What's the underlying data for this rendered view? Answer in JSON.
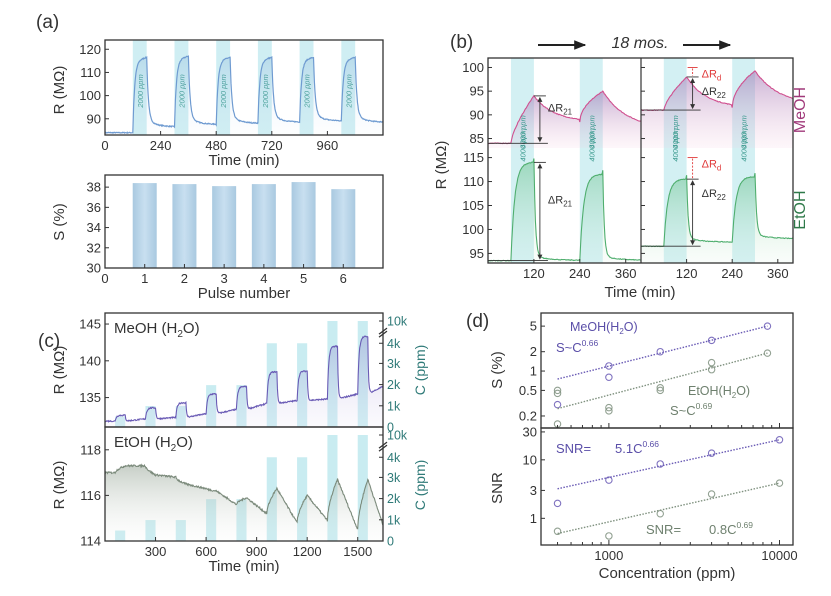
{
  "chart_data": [
    {
      "id": "a-top",
      "panel_label": "(a)",
      "type": "line",
      "xlabel": "Time (min)",
      "ylabel": "R (MΩ)",
      "xlim": [
        0,
        1200
      ],
      "ylim": [
        83,
        124
      ],
      "xticks": [
        0,
        240,
        480,
        720,
        960
      ],
      "yticks": [
        90,
        100,
        110,
        120
      ],
      "line_color": "#6f9bd1",
      "pulse_color": "#cfeef3",
      "pulse_label": "2000 ppm",
      "baseline_start": 84,
      "pulses": [
        {
          "start": 120,
          "end": 180,
          "peak": 116.5,
          "recover": 86.5
        },
        {
          "start": 300,
          "end": 360,
          "peak": 117.0,
          "recover": 87.5
        },
        {
          "start": 480,
          "end": 540,
          "peak": 116.5,
          "recover": 88.0
        },
        {
          "start": 660,
          "end": 720,
          "peak": 116.5,
          "recover": 88.5
        },
        {
          "start": 840,
          "end": 900,
          "peak": 116.5,
          "recover": 89.0
        },
        {
          "start": 1020,
          "end": 1080,
          "peak": 116.5,
          "recover": 88.5
        }
      ]
    },
    {
      "id": "a-bottom",
      "type": "bar",
      "xlabel": "Pulse number",
      "ylabel": "S (%)",
      "categories": [
        "1",
        "2",
        "3",
        "4",
        "5",
        "6"
      ],
      "values": [
        38.4,
        38.3,
        38.1,
        38.3,
        38.5,
        37.8
      ],
      "xticks": [
        "0",
        "1",
        "2",
        "3",
        "4",
        "5",
        "6"
      ],
      "yticks": [
        30,
        32,
        34,
        36,
        38
      ],
      "ylim": [
        30,
        39.2
      ],
      "bar_color": "#b7d3e6"
    },
    {
      "id": "b",
      "panel_label": "(b)",
      "type": "line",
      "title": "18 mos.",
      "xlabel": "Time (min)",
      "ylabel": "R (MΩ)",
      "xlim_each": [
        0,
        400
      ],
      "xticks": [
        120,
        240,
        360
      ],
      "pulse_label": "4000 ppm",
      "pulse_windows": [
        [
          60,
          120
        ],
        [
          240,
          300
        ]
      ],
      "series": [
        {
          "name": "MeOH",
          "color": "#d0508f",
          "ylim": [
            83,
            102
          ],
          "yticks": [
            85,
            90,
            95,
            100
          ],
          "before": {
            "baseline": 84,
            "peak1": 94,
            "valley": 88.5,
            "peak2": 95,
            "end": 87
          },
          "after": {
            "baseline": 91,
            "peak1": 98,
            "valley": 91.5,
            "peak2": 99.3,
            "end": 92
          },
          "annotations": [
            "ΔR21",
            "ΔRd",
            "ΔR22"
          ]
        },
        {
          "name": "EtOH",
          "color": "#4fae6e",
          "ylim": [
            93,
            117
          ],
          "yticks": [
            95,
            100,
            105,
            110,
            115
          ],
          "before": {
            "baseline": 93.5,
            "peak1": 114,
            "valley": 93.5,
            "peak2": 111.5,
            "end": 93.5
          },
          "after": {
            "baseline": 96.5,
            "peak1": 110.5,
            "valley": 97.3,
            "peak2": 111,
            "end": 98
          },
          "annotations": [
            "ΔR21",
            "ΔRd",
            "ΔR22"
          ]
        }
      ]
    },
    {
      "id": "c",
      "panel_label": "(c)",
      "type": "line",
      "xlabel": "Time (min)",
      "ylabel": "R (MΩ)",
      "y2label": "C (ppm)",
      "xlim": [
        0,
        1650
      ],
      "xticks": [
        300,
        600,
        900,
        1200,
        1500
      ],
      "y2ticks": [
        "0",
        "1k",
        "2k",
        "3k",
        "4k",
        "10k"
      ],
      "pulse_color": "#c9ecf1",
      "pulses": [
        {
          "start": 60,
          "end": 120,
          "conc": 500
        },
        {
          "start": 240,
          "end": 300,
          "conc": 1000
        },
        {
          "start": 420,
          "end": 480,
          "conc": 1000
        },
        {
          "start": 600,
          "end": 660,
          "conc": 2000
        },
        {
          "start": 780,
          "end": 840,
          "conc": 2000
        },
        {
          "start": 960,
          "end": 1020,
          "conc": 4000
        },
        {
          "start": 1140,
          "end": 1200,
          "conc": 4000
        },
        {
          "start": 1320,
          "end": 1380,
          "conc": 10000
        },
        {
          "start": 1500,
          "end": 1560,
          "conc": 10000
        }
      ],
      "series": [
        {
          "name": "MeOH (H2O)",
          "color": "#6a5bb5",
          "ylim": [
            131,
            146.5
          ],
          "yticks": [
            135,
            140,
            145
          ],
          "baselines": [
            131.8,
            132.1,
            132.3,
            132.8,
            133.4,
            134.2,
            134.6,
            134.8,
            135.5,
            136.5
          ],
          "peaks": [
            132.6,
            133.6,
            134.3,
            135.5,
            136.5,
            138.5,
            138.6,
            142.0,
            143.3
          ]
        },
        {
          "name": "EtOH (H2O)",
          "color": "#7b8a7b",
          "ylim": [
            114,
            119
          ],
          "yticks": [
            114,
            116,
            118
          ],
          "baselines": [
            117.0,
            117.3,
            116.8,
            116.3,
            115.6,
            115.2,
            114.8,
            114.9,
            114.5,
            114.7,
            115.0
          ],
          "peaks": [
            117.3,
            116.9,
            116.5,
            116.2,
            115.9,
            116.3,
            116.0,
            116.7,
            116.7
          ]
        }
      ]
    },
    {
      "id": "d",
      "panel_label": "(d)",
      "type": "scatter",
      "xlabel": "Concentration (ppm)",
      "xscale": "log",
      "xlim": [
        400,
        12000
      ],
      "xticks": [
        1000,
        10000
      ],
      "subplots": [
        {
          "ylabel": "S (%)",
          "yscale": "log",
          "ylim": [
            0.13,
            8
          ],
          "yticks": [
            0.2,
            0.5,
            1,
            2,
            5
          ],
          "series": [
            {
              "name": "MeOH(H2O)",
              "fit": "S~C^0.66",
              "color": "#6a5bb5",
              "points": [
                [
                  500,
                  0.3
                ],
                [
                  1000,
                  1.2
                ],
                [
                  1000,
                  0.8
                ],
                [
                  2000,
                  2.0
                ],
                [
                  4000,
                  3.0
                ],
                [
                  8500,
                  5.0
                ]
              ],
              "fit_line": [
                [
                  500,
                  0.75
                ],
                [
                  8500,
                  5.0
                ]
              ]
            },
            {
              "name": "EtOH(H2O)",
              "fit": "S~C^0.69",
              "color": "#7f917f",
              "points": [
                [
                  500,
                  0.5
                ],
                [
                  500,
                  0.45
                ],
                [
                  500,
                  0.15
                ],
                [
                  1000,
                  0.27
                ],
                [
                  1000,
                  0.24
                ],
                [
                  2000,
                  0.55
                ],
                [
                  2000,
                  0.5
                ],
                [
                  4000,
                  1.35
                ],
                [
                  4000,
                  1.05
                ],
                [
                  8500,
                  1.9
                ]
              ],
              "fit_line": [
                [
                  500,
                  0.26
                ],
                [
                  8500,
                  1.9
                ]
              ]
            }
          ]
        },
        {
          "ylabel": "SNR",
          "yscale": "log",
          "ylim": [
            0.35,
            35
          ],
          "yticks": [
            1,
            3,
            10,
            30
          ],
          "series": [
            {
              "name": "MeOH",
              "fit": "SNR= 5.1C^0.66",
              "color": "#6a5bb5",
              "points": [
                [
                  500,
                  1.8
                ],
                [
                  1000,
                  4.5
                ],
                [
                  2000,
                  8.5
                ],
                [
                  4000,
                  13
                ],
                [
                  10000,
                  22
                ]
              ],
              "fit_line": [
                [
                  500,
                  3.2
                ],
                [
                  10000,
                  22
                ]
              ]
            },
            {
              "name": "EtOH",
              "fit": "SNR= 0.8C^0.69",
              "color": "#7f917f",
              "points": [
                [
                  500,
                  0.6
                ],
                [
                  1000,
                  0.5
                ],
                [
                  2000,
                  1.2
                ],
                [
                  4000,
                  2.6
                ],
                [
                  10000,
                  4.0
                ]
              ],
              "fit_line": [
                [
                  500,
                  0.55
                ],
                [
                  10000,
                  4.0
                ]
              ]
            }
          ]
        }
      ]
    }
  ],
  "labels": {
    "a": "(a)",
    "b": "(b)",
    "c": "(c)",
    "d": "(d)",
    "a_top_ylabel": "R (MΩ)",
    "a_top_xlabel": "Time (min)",
    "a_bottom_ylabel": "S (%)",
    "a_bottom_xlabel": "Pulse number",
    "b_title": "18 mos.",
    "b_ylabel": "R (MΩ)",
    "b_xlabel": "Time (min)",
    "b_meoh": "MeOH",
    "b_etoh": "EtOH",
    "c_ylabel_top": "R (MΩ)",
    "c_ylabel_bottom": "R (MΩ)",
    "c_y2label_top": "C (ppm)",
    "c_y2label_bottom": "C (ppm)",
    "c_xlabel": "Time (min)",
    "c_meoh": "MeOH (H",
    "c_etoh": "EtOH (H",
    "d_ylabel_top": "S (%)",
    "d_ylabel_bottom": "SNR",
    "d_xlabel": "Concentration (ppm)",
    "d_meoh": "MeOH(H",
    "d_etoh": "EtOH(H",
    "d_fit_meoh_s": "S~C",
    "d_fit_meoh_s_exp": "0.66",
    "d_fit_etoh_s": "S~C",
    "d_fit_etoh_s_exp": "0.69",
    "d_snr_meoh": "SNR=",
    "d_snr_meoh_coef": "5.1C",
    "d_snr_meoh_exp": "0.66",
    "d_snr_etoh": "SNR=",
    "d_snr_etoh_coef": "0.8C",
    "d_snr_etoh_exp": "0.69"
  }
}
